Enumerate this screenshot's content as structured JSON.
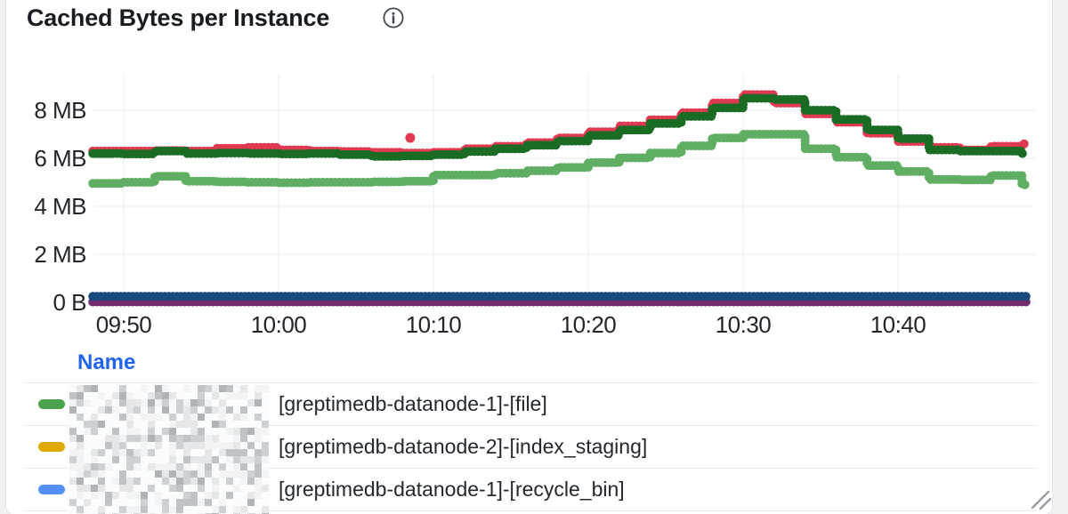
{
  "panel": {
    "title": "Cached Bytes per Instance",
    "background": "#ffffff",
    "outside_background": "#eff1f2",
    "icons": {
      "info": "circled-i",
      "resize": "diagonal-grip"
    }
  },
  "chart_data": {
    "type": "line",
    "style": "dotted-step",
    "title": "Cached Bytes per Instance",
    "xlabel": "",
    "ylabel": "",
    "unit": "bytes",
    "grid": true,
    "legend_position": "bottom-table",
    "ylim_mb": [
      0,
      9.5
    ],
    "x_range": [
      "09:48",
      "10:48"
    ],
    "x_ticks": [
      {
        "label": "09:50",
        "min": 590
      },
      {
        "label": "10:00",
        "min": 600
      },
      {
        "label": "10:10",
        "min": 610
      },
      {
        "label": "10:20",
        "min": 620
      },
      {
        "label": "10:30",
        "min": 630
      },
      {
        "label": "10:40",
        "min": 640
      }
    ],
    "y_ticks": [
      {
        "label": "8 MB",
        "mb": 8
      },
      {
        "label": "6 MB",
        "mb": 6
      },
      {
        "label": "4 MB",
        "mb": 4
      },
      {
        "label": "2 MB",
        "mb": 2
      },
      {
        "label": "0 B",
        "mb": 0
      }
    ],
    "x_start_min": 588,
    "step_min": 2,
    "series": [
      {
        "name": "series-purple",
        "color": "#722a6f",
        "values_mb": [
          0.02,
          0.02,
          0.02,
          0.02,
          0.02,
          0.02,
          0.02,
          0.02,
          0.02,
          0.02,
          0.02,
          0.02,
          0.02,
          0.02,
          0.02,
          0.02,
          0.02,
          0.02,
          0.02,
          0.02,
          0.02,
          0.02,
          0.02,
          0.02,
          0.02,
          0.02,
          0.02,
          0.02,
          0.02,
          0.02,
          0.02
        ]
      },
      {
        "name": "series-navy",
        "color": "#1b4a7e",
        "values_mb": [
          0.25,
          0.25,
          0.25,
          0.25,
          0.25,
          0.25,
          0.25,
          0.25,
          0.25,
          0.25,
          0.25,
          0.25,
          0.25,
          0.25,
          0.25,
          0.25,
          0.25,
          0.25,
          0.25,
          0.25,
          0.25,
          0.25,
          0.25,
          0.25,
          0.25,
          0.25,
          0.25,
          0.25,
          0.25,
          0.25,
          0.25
        ]
      },
      {
        "name": "series-red",
        "color": "#e03a52",
        "values_mb": [
          6.3,
          6.3,
          6.32,
          6.3,
          6.42,
          6.45,
          6.35,
          6.3,
          6.28,
          6.25,
          6.22,
          6.25,
          6.4,
          6.5,
          6.65,
          6.85,
          7.1,
          7.35,
          7.6,
          7.9,
          8.3,
          8.65,
          8.3,
          7.85,
          7.5,
          7.05,
          6.7,
          6.45,
          6.35,
          6.5,
          6.6
        ]
      },
      {
        "name": "series-dark-green",
        "color": "#1a6b24",
        "values_mb": [
          6.2,
          6.18,
          6.3,
          6.2,
          6.22,
          6.2,
          6.18,
          6.2,
          6.15,
          6.08,
          6.1,
          6.15,
          6.28,
          6.4,
          6.55,
          6.72,
          6.95,
          7.18,
          7.45,
          7.75,
          8.1,
          8.5,
          8.45,
          8.0,
          7.62,
          7.18,
          6.82,
          6.35,
          6.3,
          6.3,
          6.2
        ]
      },
      {
        "name": "series-light-green",
        "color": "#5fae63",
        "values_mb": [
          4.95,
          5.0,
          5.25,
          5.05,
          5.02,
          5.0,
          4.98,
          5.0,
          5.0,
          5.02,
          5.05,
          5.3,
          5.3,
          5.38,
          5.48,
          5.62,
          5.82,
          6.02,
          6.22,
          6.52,
          6.85,
          7.0,
          7.0,
          6.4,
          6.05,
          5.7,
          5.45,
          5.12,
          5.1,
          5.28,
          4.9
        ]
      }
    ],
    "outlier": {
      "series": "series-red",
      "min": 608.5,
      "mb": 6.85
    }
  },
  "legend": {
    "header": "Name",
    "rows": [
      {
        "swatch_color": "#4aa24d",
        "redacted_prefix": true,
        "label": "[greptimedb-datanode-1]-[file]"
      },
      {
        "swatch_color": "#dfaa00",
        "redacted_prefix": true,
        "label": "[greptimedb-datanode-2]-[index_staging]"
      },
      {
        "swatch_color": "#548ff8",
        "redacted_prefix": true,
        "label": "[greptimedb-datanode-1]-[recycle_bin]"
      }
    ]
  }
}
